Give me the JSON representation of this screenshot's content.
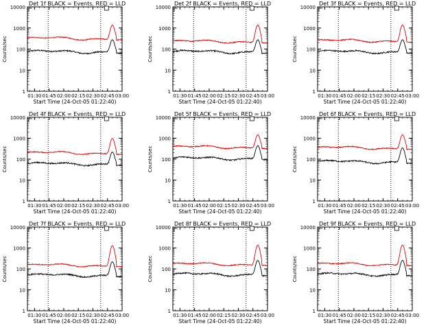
{
  "colors": {
    "events": "#000000",
    "lld": "#e00000",
    "axes": "#000000",
    "background": "#ffffff"
  },
  "chart_data": [
    {
      "type": "line",
      "title": "Det 1f BLACK = Events, RED = LLD",
      "xlabel": "Start Time (24-Oct-05 01:22:40)",
      "ylabel": "Counts/sec",
      "yscale": "log",
      "ylim": [
        1,
        10000
      ],
      "xlim": [
        "01:22:40",
        "03:00"
      ],
      "xticks": [
        "01:30",
        "01:45",
        "02:00",
        "02:15",
        "02:30",
        "02:45",
        "03:00"
      ],
      "yticks": [
        "1",
        "10",
        "100",
        "1000",
        "10000"
      ],
      "marker_lines": [
        "01:44",
        "02:38"
      ],
      "series": [
        {
          "name": "Events",
          "color": "black",
          "baseline": 75,
          "peak": 280
        },
        {
          "name": "LLD",
          "color": "red",
          "baseline": 320,
          "peak": 1400
        }
      ]
    },
    {
      "type": "line",
      "title": "Det 2f BLACK = Events, RED = LLD",
      "xlabel": "Start Time (24-Oct-05 01:22:40)",
      "ylabel": "Counts/sec",
      "yscale": "log",
      "ylim": [
        1,
        10000
      ],
      "xlim": [
        "01:22:40",
        "03:00"
      ],
      "xticks": [
        "01:30",
        "01:45",
        "02:00",
        "02:15",
        "02:30",
        "02:45",
        "03:00"
      ],
      "yticks": [
        "1",
        "10",
        "100",
        "1000",
        "10000"
      ],
      "marker_lines": [
        "01:44",
        "02:38"
      ],
      "series": [
        {
          "name": "Events",
          "color": "black",
          "baseline": 75,
          "peak": 280
        },
        {
          "name": "LLD",
          "color": "red",
          "baseline": 230,
          "peak": 1400
        }
      ]
    },
    {
      "type": "line",
      "title": "Det 3f BLACK = Events, RED = LLD",
      "xlabel": "Start Time (24-Oct-05 01:22:40)",
      "ylabel": "Counts/sec",
      "yscale": "log",
      "ylim": [
        1,
        10000
      ],
      "xlim": [
        "01:22:40",
        "03:00"
      ],
      "xticks": [
        "01:30",
        "01:45",
        "02:00",
        "02:15",
        "02:30",
        "02:45",
        "03:00"
      ],
      "yticks": [
        "1",
        "10",
        "100",
        "1000",
        "10000"
      ],
      "marker_lines": [
        "01:44",
        "02:38"
      ],
      "series": [
        {
          "name": "Events",
          "color": "black",
          "baseline": 75,
          "peak": 280
        },
        {
          "name": "LLD",
          "color": "red",
          "baseline": 250,
          "peak": 1400
        }
      ]
    },
    {
      "type": "line",
      "title": "Det 4f BLACK = Events, RED = LLD",
      "xlabel": "Start Time (24-Oct-05 01:22:40)",
      "ylabel": "Counts/sec",
      "yscale": "log",
      "ylim": [
        1,
        10000
      ],
      "xlim": [
        "01:22:40",
        "03:00"
      ],
      "xticks": [
        "01:30",
        "01:45",
        "02:00",
        "02:15",
        "02:30",
        "02:45",
        "03:00"
      ],
      "yticks": [
        "1",
        "10",
        "100",
        "1000",
        "10000"
      ],
      "marker_lines": [
        "01:44",
        "02:38"
      ],
      "series": [
        {
          "name": "Events",
          "color": "black",
          "baseline": 60,
          "peak": 220
        },
        {
          "name": "LLD",
          "color": "red",
          "baseline": 200,
          "peak": 1000
        }
      ]
    },
    {
      "type": "line",
      "title": "Det 5f BLACK = Events, RED = LLD",
      "xlabel": "Start Time (24-Oct-05 01:22:40)",
      "ylabel": "Counts/sec",
      "yscale": "log",
      "ylim": [
        1,
        10000
      ],
      "xlim": [
        "01:22:40",
        "03:00"
      ],
      "xticks": [
        "01:30",
        "01:45",
        "02:00",
        "02:15",
        "02:30",
        "02:45",
        "03:00"
      ],
      "yticks": [
        "1",
        "10",
        "100",
        "1000",
        "10000"
      ],
      "marker_lines": [
        "01:44",
        "02:38"
      ],
      "series": [
        {
          "name": "Events",
          "color": "black",
          "baseline": 110,
          "peak": 450
        },
        {
          "name": "LLD",
          "color": "red",
          "baseline": 380,
          "peak": 1500
        }
      ]
    },
    {
      "type": "line",
      "title": "Det 6f BLACK = Events, RED = LLD",
      "xlabel": "Start Time (24-Oct-05 01:22:40)",
      "ylabel": "Counts/sec",
      "yscale": "log",
      "ylim": [
        1,
        10000
      ],
      "xlim": [
        "01:22:40",
        "03:00"
      ],
      "xticks": [
        "01:30",
        "01:45",
        "02:00",
        "02:15",
        "02:30",
        "02:45",
        "03:00"
      ],
      "yticks": [
        "1",
        "10",
        "100",
        "1000",
        "10000"
      ],
      "marker_lines": [
        "01:44",
        "02:38"
      ],
      "series": [
        {
          "name": "Events",
          "color": "black",
          "baseline": 75,
          "peak": 350
        },
        {
          "name": "LLD",
          "color": "red",
          "baseline": 350,
          "peak": 1500
        }
      ]
    },
    {
      "type": "line",
      "title": "Det 7f BLACK = Events, RED = LLD",
      "xlabel": "Start Time (24-Oct-05 01:22:40)",
      "ylabel": "Counts/sec",
      "yscale": "log",
      "ylim": [
        1,
        10000
      ],
      "xlim": [
        "01:22:40",
        "03:00"
      ],
      "xticks": [
        "01:30",
        "01:45",
        "02:00",
        "02:15",
        "02:30",
        "02:45",
        "03:00"
      ],
      "yticks": [
        "1",
        "10",
        "100",
        "1000",
        "10000"
      ],
      "marker_lines": [
        "01:44",
        "02:38"
      ],
      "series": [
        {
          "name": "Events",
          "color": "black",
          "baseline": 50,
          "peak": 220
        },
        {
          "name": "LLD",
          "color": "red",
          "baseline": 150,
          "peak": 1300
        }
      ]
    },
    {
      "type": "line",
      "title": "Det 8f BLACK = Events, RED = LLD",
      "xlabel": "Start Time (24-Oct-05 01:22:40)",
      "ylabel": "Counts/sec",
      "yscale": "log",
      "ylim": [
        1,
        10000
      ],
      "xlim": [
        "01:22:40",
        "03:00"
      ],
      "xticks": [
        "01:30",
        "01:45",
        "02:00",
        "02:15",
        "02:30",
        "02:45",
        "03:00"
      ],
      "yticks": [
        "1",
        "10",
        "100",
        "1000",
        "10000"
      ],
      "marker_lines": [
        "01:44",
        "02:38"
      ],
      "series": [
        {
          "name": "Events",
          "color": "black",
          "baseline": 55,
          "peak": 260
        },
        {
          "name": "LLD",
          "color": "red",
          "baseline": 170,
          "peak": 1400
        }
      ]
    },
    {
      "type": "line",
      "title": "Det 9f BLACK = Events, RED = LLD",
      "xlabel": "Start Time (24-Oct-05 01:22:40)",
      "ylabel": "Counts/sec",
      "yscale": "log",
      "ylim": [
        1,
        10000
      ],
      "xlim": [
        "01:22:40",
        "03:00"
      ],
      "xticks": [
        "01:30",
        "01:45",
        "02:00",
        "02:15",
        "02:30",
        "02:45",
        "03:00"
      ],
      "yticks": [
        "1",
        "10",
        "100",
        "1000",
        "10000"
      ],
      "marker_lines": [
        "01:44",
        "02:38"
      ],
      "series": [
        {
          "name": "Events",
          "color": "black",
          "baseline": 55,
          "peak": 260
        },
        {
          "name": "LLD",
          "color": "red",
          "baseline": 170,
          "peak": 1400
        }
      ]
    }
  ]
}
